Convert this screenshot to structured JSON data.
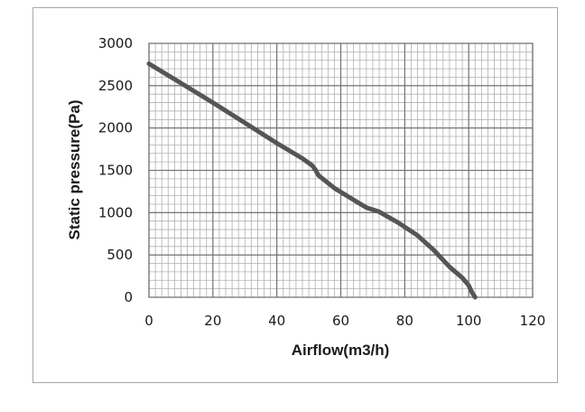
{
  "chart_data": {
    "type": "line",
    "title": "",
    "xlabel": "Airflow(m3/h)",
    "ylabel": "Static pressure(Pa)",
    "xlim": [
      0,
      120
    ],
    "ylim": [
      0,
      3000
    ],
    "x_ticks": [
      "0",
      "20",
      "40",
      "60",
      "80",
      "100",
      "120"
    ],
    "y_ticks": [
      "0",
      "500",
      "1000",
      "1500",
      "2000",
      "2500",
      "3000"
    ],
    "grid": true,
    "minor_grid": true,
    "series": [
      {
        "color": "#555555",
        "points": [
          [
            0,
            2760
          ],
          [
            10,
            2530
          ],
          [
            20,
            2300
          ],
          [
            30,
            2060
          ],
          [
            40,
            1820
          ],
          [
            48,
            1640
          ],
          [
            51,
            1560
          ],
          [
            52,
            1510
          ],
          [
            53,
            1440
          ],
          [
            58,
            1290
          ],
          [
            64,
            1150
          ],
          [
            68,
            1060
          ],
          [
            72,
            1010
          ],
          [
            78,
            880
          ],
          [
            84,
            730
          ],
          [
            89,
            560
          ],
          [
            94,
            360
          ],
          [
            98,
            230
          ],
          [
            100,
            140
          ],
          [
            101,
            60
          ],
          [
            102,
            0
          ]
        ]
      }
    ]
  }
}
